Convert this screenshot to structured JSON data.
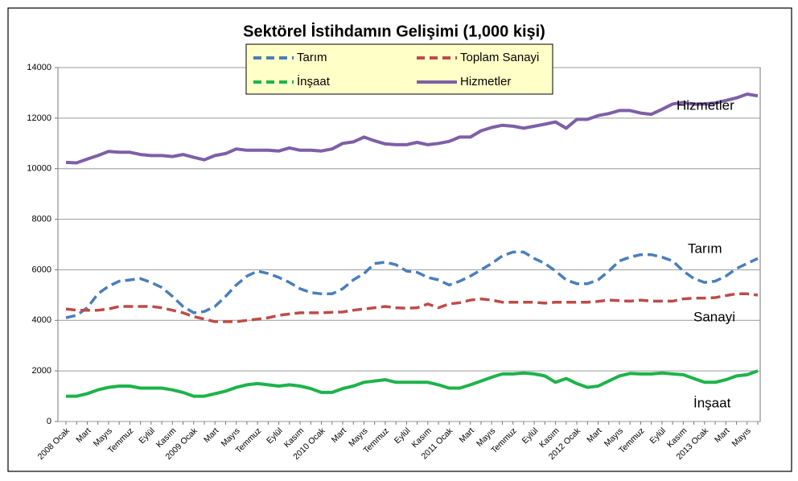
{
  "chart_data": {
    "type": "line",
    "title": "Sektörel İstihdamın Gelişimi (1,000 kişi)",
    "categories": [
      "2008 Ocak",
      null,
      "Mart",
      null,
      "Mayıs",
      null,
      "Temmuz",
      null,
      "Eylül",
      null,
      "Kasım",
      null,
      "2009 Ocak",
      null,
      "Mart",
      null,
      "Mayıs",
      null,
      "Temmuz",
      null,
      "Eylül",
      null,
      "Kasım",
      null,
      "2010 Ocak",
      null,
      "Mart",
      null,
      "Mayıs",
      null,
      "Temmuz",
      null,
      "Eylül",
      null,
      "Kasım",
      null,
      "2011 Ocak",
      null,
      "Mart",
      null,
      "Mayıs",
      null,
      "Temmuz",
      null,
      "Eylül",
      null,
      "Kasım",
      null,
      "2012 Ocak",
      null,
      "Mart",
      null,
      "Mayıs",
      null,
      "Temmuz",
      null,
      "Eylül",
      null,
      "Kasım",
      null,
      "2013 Ocak",
      null,
      "Mart",
      null,
      "Mayıs",
      null
    ],
    "series": [
      {
        "name": "Tarım",
        "color": "#4a7ebb",
        "dash": true,
        "values": [
          4100,
          4200,
          4500,
          5050,
          5350,
          5550,
          5600,
          5650,
          5500,
          5300,
          4950,
          4550,
          4300,
          4350,
          4550,
          4950,
          5400,
          5750,
          5950,
          5850,
          5700,
          5500,
          5250,
          5100,
          5050,
          5050,
          5250,
          5600,
          5850,
          6250,
          6300,
          6200,
          5950,
          5900,
          5700,
          5600,
          5400,
          5550,
          5750,
          6000,
          6250,
          6550,
          6700,
          6700,
          6450,
          6250,
          5950,
          5600,
          5450,
          5450,
          5600,
          5950,
          6350,
          6500,
          6600,
          6600,
          6500,
          6350,
          5950,
          5650,
          5500,
          5550,
          5750,
          6050,
          6250,
          6450
        ]
      },
      {
        "name": "Toplam Sanayi",
        "color": "#be4b48",
        "dash": true,
        "values": [
          4450,
          4400,
          4400,
          4400,
          4450,
          4550,
          4550,
          4550,
          4550,
          4500,
          4400,
          4300,
          4150,
          4050,
          3950,
          3950,
          3950,
          4000,
          4050,
          4100,
          4200,
          4250,
          4300,
          4300,
          4300,
          4320,
          4330,
          4400,
          4450,
          4500,
          4550,
          4500,
          4480,
          4500,
          4650,
          4500,
          4650,
          4700,
          4800,
          4850,
          4800,
          4720,
          4720,
          4720,
          4720,
          4680,
          4720,
          4720,
          4720,
          4720,
          4750,
          4800,
          4780,
          4760,
          4800,
          4760,
          4760,
          4760,
          4850,
          4880,
          4880,
          4900,
          4980,
          5050,
          5050,
          5000
        ]
      },
      {
        "name": "İnşaat",
        "color": "#1db34a",
        "dash": false,
        "values": [
          1000,
          1000,
          1100,
          1250,
          1350,
          1400,
          1400,
          1320,
          1320,
          1320,
          1250,
          1150,
          1000,
          1000,
          1100,
          1200,
          1350,
          1450,
          1500,
          1450,
          1400,
          1450,
          1400,
          1300,
          1150,
          1150,
          1300,
          1400,
          1550,
          1600,
          1650,
          1550,
          1550,
          1550,
          1550,
          1450,
          1320,
          1320,
          1450,
          1600,
          1750,
          1880,
          1880,
          1920,
          1880,
          1800,
          1550,
          1700,
          1500,
          1350,
          1400,
          1600,
          1800,
          1900,
          1880,
          1880,
          1920,
          1880,
          1850,
          1700,
          1550,
          1550,
          1650,
          1800,
          1850,
          2000
        ]
      },
      {
        "name": "Hizmetler",
        "color": "#7e5fa6",
        "dash": false,
        "values": [
          10250,
          10230,
          10380,
          10520,
          10680,
          10650,
          10650,
          10560,
          10520,
          10520,
          10480,
          10560,
          10450,
          10350,
          10520,
          10600,
          10780,
          10730,
          10730,
          10730,
          10700,
          10820,
          10730,
          10730,
          10700,
          10780,
          11000,
          11060,
          11250,
          11100,
          10980,
          10950,
          10950,
          11040,
          10950,
          11000,
          11080,
          11250,
          11250,
          11500,
          11630,
          11720,
          11680,
          11600,
          11680,
          11760,
          11850,
          11600,
          11950,
          11950,
          12100,
          12180,
          12300,
          12300,
          12200,
          12150,
          12350,
          12560,
          12620,
          12550,
          12560,
          12600,
          12700,
          12800,
          12950,
          12880
        ]
      }
    ],
    "annotations": [
      "Hizmetler",
      "Tarım",
      "Sanayi",
      "İnşaat"
    ],
    "ylim": [
      0,
      14000
    ],
    "yticks": [
      0,
      2000,
      4000,
      6000,
      8000,
      10000,
      12000,
      14000
    ],
    "grid": true,
    "legend": "top"
  }
}
